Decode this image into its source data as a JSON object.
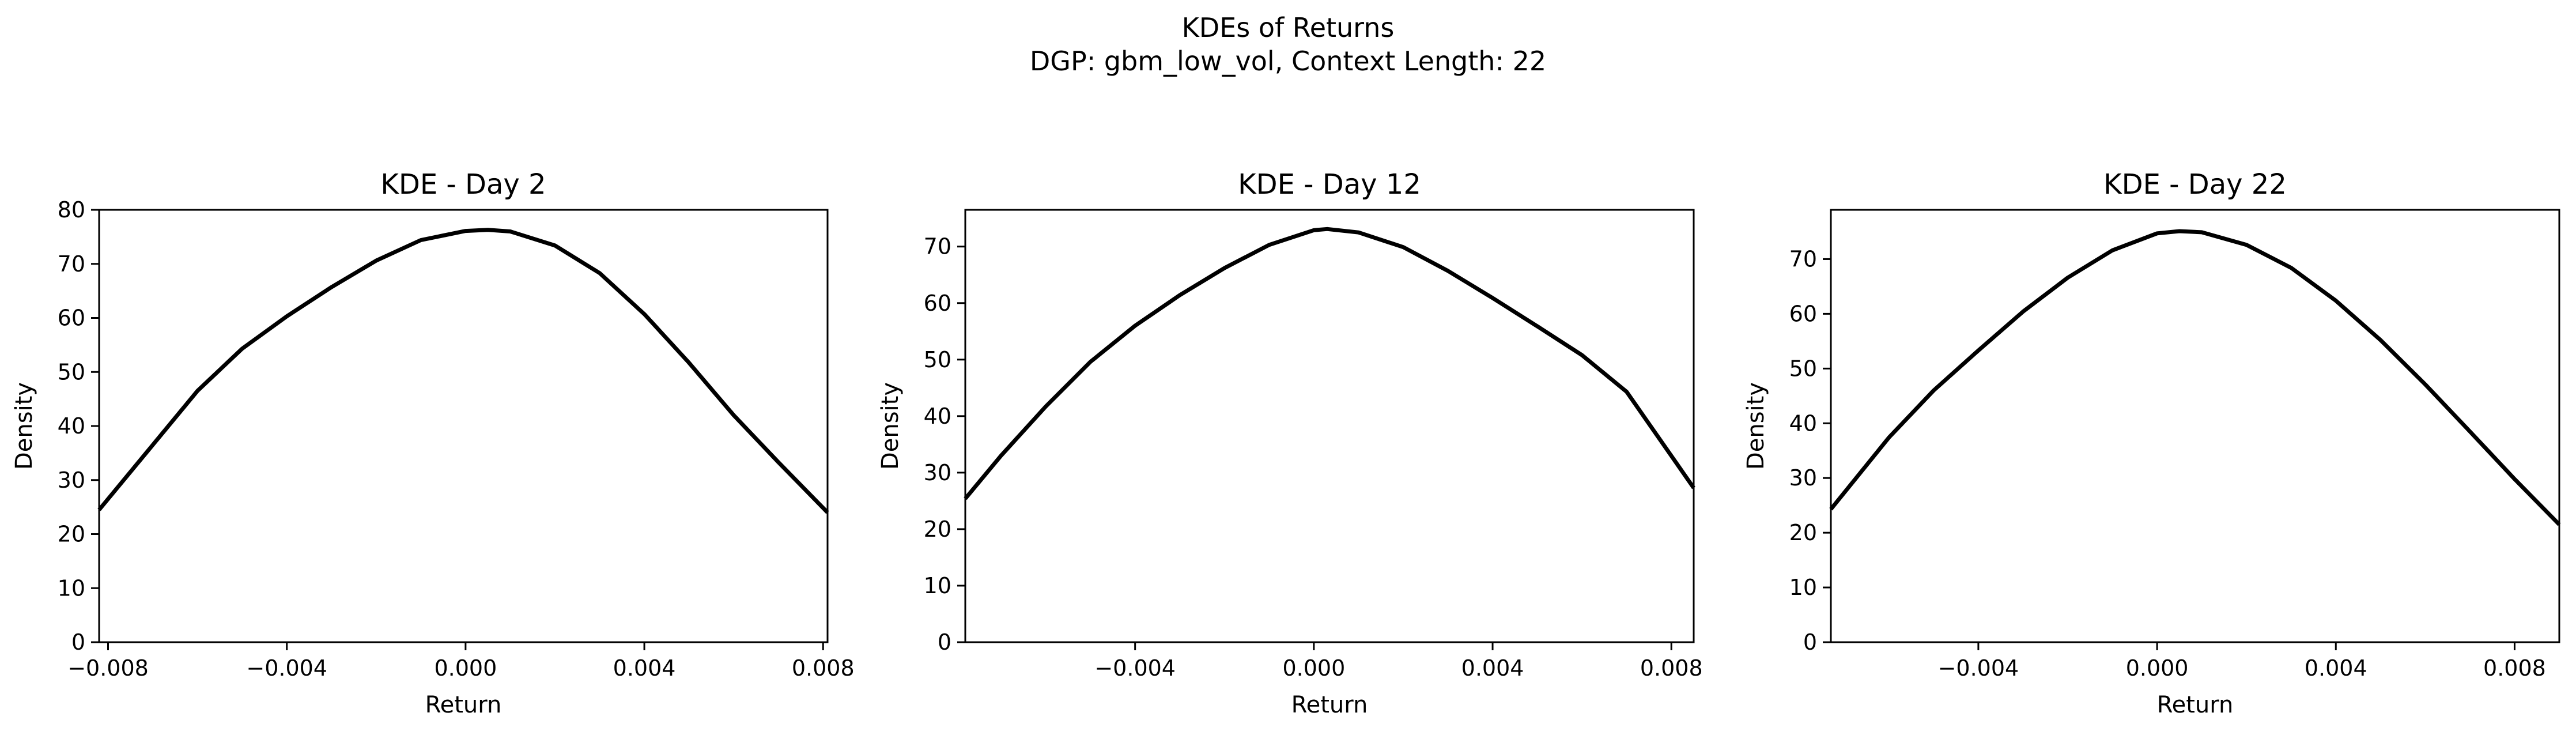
{
  "figure": {
    "title_line1": "KDEs of Returns",
    "title_line2": "DGP: gbm_low_vol, Context Length: 22"
  },
  "chart_data": [
    {
      "type": "line",
      "title": "KDE - Day 2",
      "xlabel": "Return",
      "ylabel": "Density",
      "xlim": [
        -0.0082,
        0.0081
      ],
      "ylim": [
        0,
        80
      ],
      "xticks": [
        -0.008,
        -0.004,
        0.0,
        0.004,
        0.008
      ],
      "xtick_labels": [
        "−0.008",
        "−0.004",
        "0.000",
        "0.004",
        "0.008"
      ],
      "yticks": [
        0,
        10,
        20,
        30,
        40,
        50,
        60,
        70,
        80
      ],
      "ytick_labels": [
        "0",
        "10",
        "20",
        "30",
        "40",
        "50",
        "60",
        "70",
        "80"
      ],
      "grid": false,
      "series": [
        {
          "color": "#000000",
          "x": [
            -0.0082,
            -0.007,
            -0.006,
            -0.005,
            -0.004,
            -0.003,
            -0.002,
            -0.001,
            0.0,
            0.0005,
            0.001,
            0.002,
            0.003,
            0.004,
            0.005,
            0.006,
            0.007,
            0.0081
          ],
          "y": [
            24.5,
            36.5,
            46.5,
            54.3,
            60.3,
            65.7,
            70.6,
            74.4,
            76.1,
            76.3,
            76.0,
            73.4,
            68.3,
            60.7,
            51.7,
            42.0,
            33.3,
            24.0
          ]
        }
      ]
    },
    {
      "type": "line",
      "title": "KDE - Day 12",
      "xlabel": "Return",
      "ylabel": "Density",
      "xlim": [
        -0.0078,
        0.0085
      ],
      "ylim": [
        0,
        76.5
      ],
      "xticks": [
        -0.004,
        0.0,
        0.004,
        0.008
      ],
      "xtick_labels": [
        "−0.004",
        "0.000",
        "0.004",
        "0.008"
      ],
      "yticks": [
        0,
        10,
        20,
        30,
        40,
        50,
        60,
        70
      ],
      "ytick_labels": [
        "0",
        "10",
        "20",
        "30",
        "40",
        "50",
        "60",
        "70"
      ],
      "grid": false,
      "series": [
        {
          "color": "#000000",
          "x": [
            -0.0078,
            -0.007,
            -0.006,
            -0.005,
            -0.004,
            -0.003,
            -0.002,
            -0.001,
            0.0,
            0.0003,
            0.001,
            0.002,
            0.003,
            0.004,
            0.005,
            0.006,
            0.007,
            0.0085
          ],
          "y": [
            25.4,
            33.0,
            41.7,
            49.6,
            56.0,
            61.4,
            66.2,
            70.3,
            72.9,
            73.1,
            72.5,
            69.9,
            65.7,
            60.9,
            55.9,
            50.8,
            44.3,
            27.3
          ]
        }
      ]
    },
    {
      "type": "line",
      "title": "KDE - Day 22",
      "xlabel": "Return",
      "ylabel": "Density",
      "xlim": [
        -0.0073,
        0.009
      ],
      "ylim": [
        0,
        79
      ],
      "xticks": [
        -0.004,
        0.0,
        0.004,
        0.008
      ],
      "xtick_labels": [
        "−0.004",
        "0.000",
        "0.004",
        "0.008"
      ],
      "yticks": [
        0,
        10,
        20,
        30,
        40,
        50,
        60,
        70
      ],
      "ytick_labels": [
        "0",
        "10",
        "20",
        "30",
        "40",
        "50",
        "60",
        "70"
      ],
      "grid": false,
      "series": [
        {
          "color": "#000000",
          "x": [
            -0.0073,
            -0.006,
            -0.005,
            -0.004,
            -0.003,
            -0.002,
            -0.001,
            0.0,
            0.0005,
            0.001,
            0.002,
            0.003,
            0.004,
            0.005,
            0.006,
            0.007,
            0.008,
            0.009
          ],
          "y": [
            24.3,
            37.4,
            46.0,
            53.3,
            60.4,
            66.6,
            71.6,
            74.7,
            75.1,
            74.9,
            72.6,
            68.4,
            62.4,
            55.2,
            47.1,
            38.5,
            29.8,
            21.5
          ]
        }
      ]
    }
  ]
}
